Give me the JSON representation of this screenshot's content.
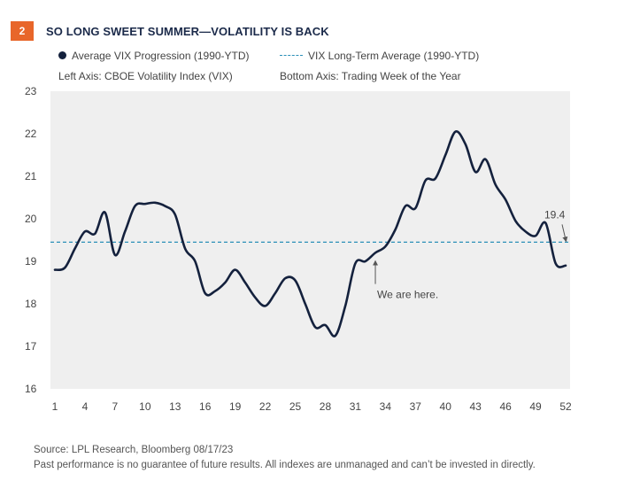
{
  "header": {
    "badge": "2",
    "title": "SO LONG SWEET SUMMER—VOLATILITY IS BACK"
  },
  "legend": {
    "series_label": "Average VIX Progression (1990-YTD)",
    "avg_label": "VIX Long-Term Average (1990-YTD)",
    "left_axis_note": "Left Axis: CBOE Volatility Index (VIX)",
    "bottom_axis_note": "Bottom Axis: Trading Week of the Year"
  },
  "footer": {
    "source": "Source: LPL Research, Bloomberg 08/17/23",
    "disclaimer": "Past performance is no guarantee of future results. All indexes are unmanaged and can’t be invested in directly."
  },
  "colors": {
    "line": "#14213d",
    "average": "#2a8fb8",
    "plot_bg": "#efefef",
    "badge": "#e8662a"
  },
  "chart_data": {
    "type": "line",
    "xlim": [
      1,
      52
    ],
    "ylim": [
      16,
      23
    ],
    "xticks": [
      1,
      4,
      7,
      10,
      13,
      16,
      19,
      22,
      25,
      28,
      31,
      34,
      37,
      40,
      43,
      46,
      49,
      52
    ],
    "yticks": [
      16,
      17,
      18,
      19,
      20,
      21,
      22,
      23
    ],
    "series": [
      {
        "name": "Average VIX Progression (1990-YTD)",
        "x": [
          1,
          2,
          3,
          4,
          5,
          6,
          7,
          8,
          9,
          10,
          11,
          12,
          13,
          14,
          15,
          16,
          17,
          18,
          19,
          20,
          21,
          22,
          23,
          24,
          25,
          26,
          27,
          28,
          29,
          30,
          31,
          32,
          33,
          34,
          35,
          36,
          37,
          38,
          39,
          40,
          41,
          42,
          43,
          44,
          45,
          46,
          47,
          48,
          49,
          50,
          51,
          52
        ],
        "y": [
          18.8,
          18.85,
          19.3,
          19.7,
          19.65,
          20.15,
          19.15,
          19.7,
          20.3,
          20.35,
          20.38,
          20.3,
          20.1,
          19.3,
          19.0,
          18.25,
          18.3,
          18.5,
          18.8,
          18.5,
          18.15,
          17.95,
          18.25,
          18.6,
          18.55,
          18.0,
          17.45,
          17.5,
          17.25,
          17.95,
          18.95,
          19.0,
          19.2,
          19.35,
          19.75,
          20.3,
          20.25,
          20.9,
          20.95,
          21.5,
          22.05,
          21.75,
          21.1,
          21.4,
          20.8,
          20.45,
          19.95,
          19.7,
          19.6,
          19.9,
          18.95,
          18.9
        ]
      }
    ],
    "average_line": {
      "value": 19.45
    },
    "annotations": [
      {
        "text": "We are here.",
        "x": 33,
        "y": 19.05
      },
      {
        "text": "19.4",
        "x": 52,
        "y": 19.45
      }
    ]
  }
}
